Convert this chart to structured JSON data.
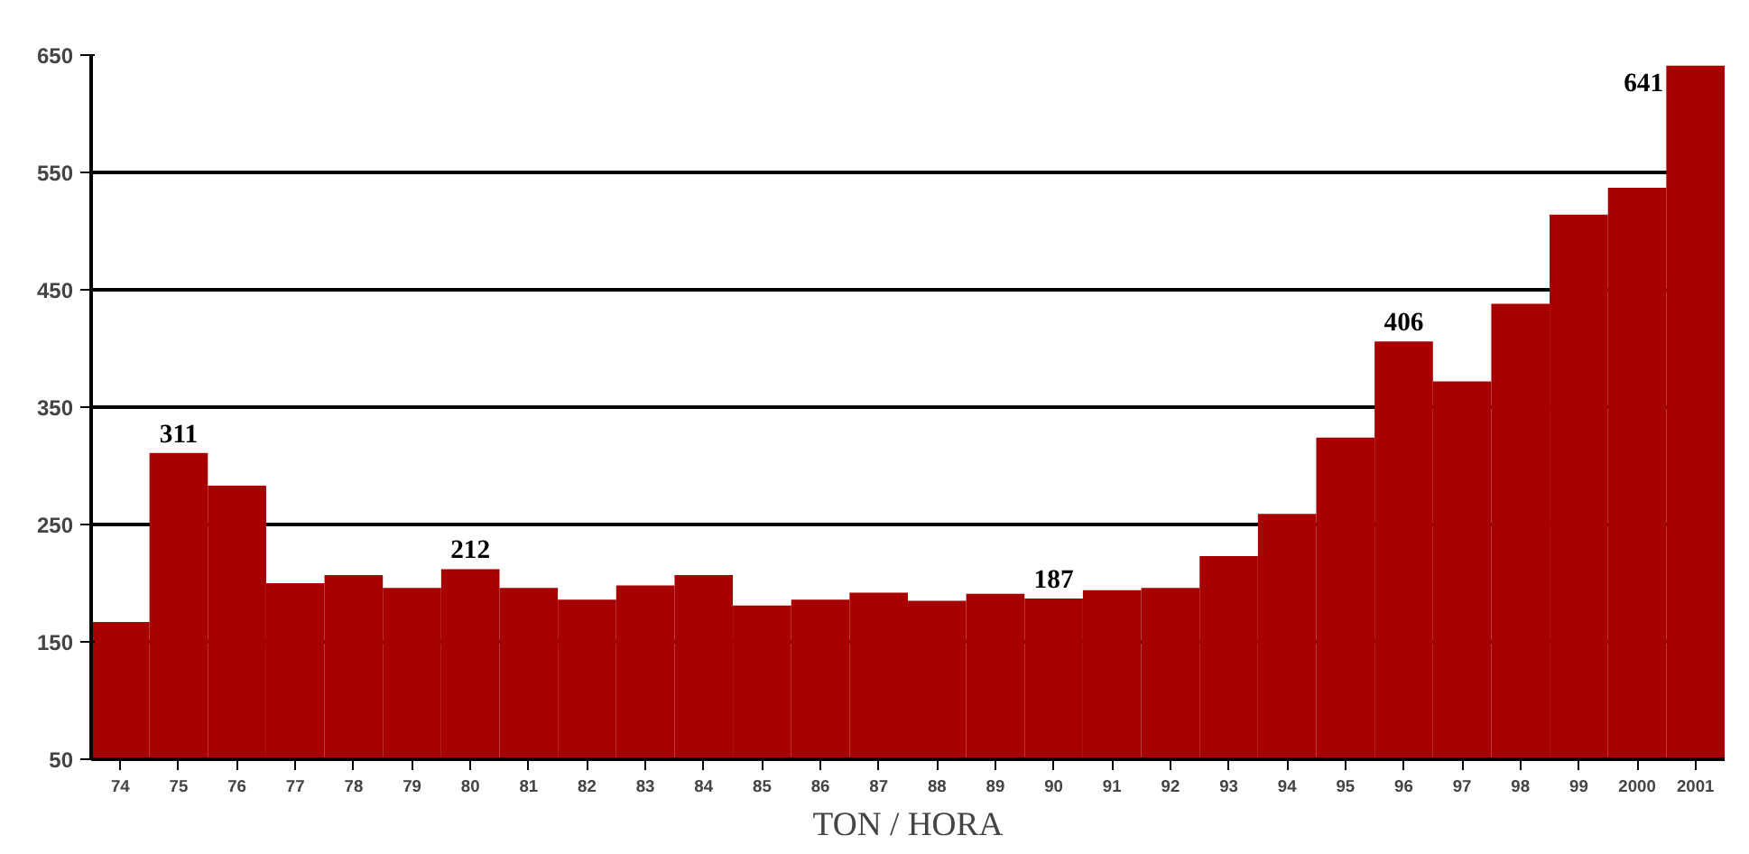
{
  "chart_data": {
    "type": "bar",
    "xlabel": "TON / HORA",
    "categories": [
      "74",
      "75",
      "76",
      "77",
      "78",
      "79",
      "80",
      "81",
      "82",
      "83",
      "84",
      "85",
      "86",
      "87",
      "88",
      "89",
      "90",
      "91",
      "92",
      "93",
      "94",
      "95",
      "96",
      "97",
      "98",
      "99",
      "2000",
      "2001"
    ],
    "values": [
      167,
      311,
      283,
      200,
      207,
      196,
      212,
      196,
      186,
      198,
      207,
      181,
      186,
      192,
      185,
      191,
      187,
      194,
      196,
      223,
      259,
      324,
      406,
      372,
      438,
      514,
      537,
      641
    ],
    "value_labels": [
      null,
      "311",
      null,
      null,
      null,
      null,
      "212",
      null,
      null,
      null,
      null,
      null,
      null,
      null,
      null,
      null,
      "187",
      null,
      null,
      null,
      null,
      null,
      "406",
      null,
      null,
      null,
      null,
      "641"
    ],
    "color": "#a80000",
    "ylim": [
      50,
      650
    ],
    "yticks": [
      50,
      150,
      250,
      350,
      450,
      550,
      650
    ],
    "grid": "y"
  }
}
